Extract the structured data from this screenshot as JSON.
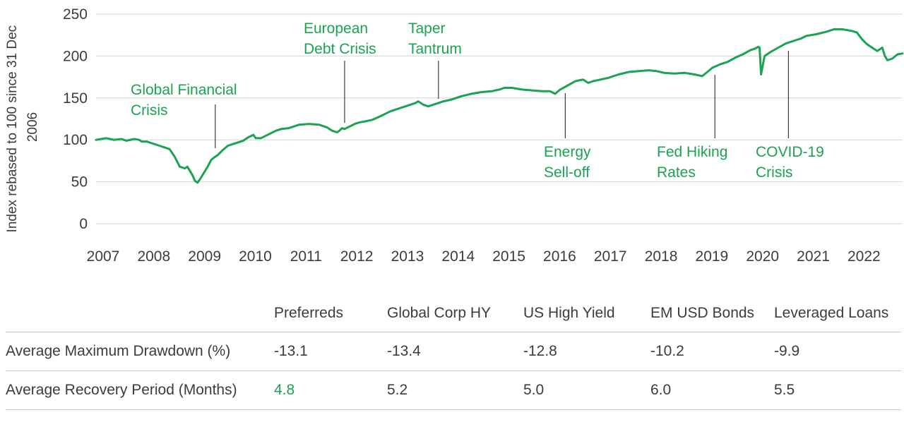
{
  "chart_data": {
    "type": "line",
    "ylabel": "Index rebased to 100 since 31 Dec 2006",
    "ylabel_lines": [
      "Index rebased to 100 since 31 Dec",
      "2006"
    ],
    "ylim": [
      0,
      250
    ],
    "yticks": [
      0,
      50,
      100,
      150,
      200,
      250
    ],
    "xlim": [
      2007.0,
      2022.9
    ],
    "xticks": [
      "2007",
      "2008",
      "2009",
      "2010",
      "2011",
      "2012",
      "2013",
      "2014",
      "2015",
      "2016",
      "2017",
      "2018",
      "2019",
      "2020",
      "2021",
      "2022"
    ],
    "grid": "horizontal",
    "line_color": "#1aa351",
    "series": [
      {
        "name": "",
        "x": [
          2007.0,
          2007.1,
          2007.2,
          2007.35,
          2007.5,
          2007.6,
          2007.75,
          2007.85,
          2007.9,
          2008.0,
          2008.1,
          2008.25,
          2008.35,
          2008.45,
          2008.55,
          2008.65,
          2008.75,
          2008.8,
          2008.85,
          2008.9,
          2008.95,
          2009.0,
          2009.05,
          2009.1,
          2009.2,
          2009.27,
          2009.33,
          2009.4,
          2009.5,
          2009.6,
          2009.7,
          2009.8,
          2009.9,
          2010.0,
          2010.1,
          2010.15,
          2010.25,
          2010.35,
          2010.45,
          2010.55,
          2010.65,
          2010.8,
          2010.9,
          2011.0,
          2011.2,
          2011.4,
          2011.55,
          2011.65,
          2011.75,
          2011.8,
          2011.85,
          2011.9,
          2012.0,
          2012.1,
          2012.2,
          2012.3,
          2012.45,
          2012.6,
          2012.8,
          2012.9,
          2013.0,
          2013.1,
          2013.2,
          2013.3,
          2013.35,
          2013.45,
          2013.55,
          2013.65,
          2013.75,
          2013.85,
          2014.0,
          2014.2,
          2014.4,
          2014.6,
          2014.8,
          2014.95,
          2015.05,
          2015.2,
          2015.4,
          2015.6,
          2015.8,
          2015.95,
          2016.05,
          2016.15,
          2016.3,
          2016.45,
          2016.6,
          2016.7,
          2016.8,
          2016.95,
          2017.1,
          2017.3,
          2017.5,
          2017.7,
          2017.9,
          2018.05,
          2018.2,
          2018.4,
          2018.6,
          2018.8,
          2018.95,
          2019.05,
          2019.15,
          2019.3,
          2019.45,
          2019.6,
          2019.75,
          2019.9,
          2020.0,
          2020.05,
          2020.08,
          2020.11,
          2020.18,
          2020.3,
          2020.45,
          2020.6,
          2020.75,
          2020.9,
          2021.0,
          2021.2,
          2021.4,
          2021.55,
          2021.7,
          2021.9,
          2022.0,
          2022.1,
          2022.2,
          2022.3,
          2022.4,
          2022.5,
          2022.55,
          2022.6,
          2022.7,
          2022.8,
          2022.9
        ],
        "y": [
          100,
          101,
          102,
          100,
          101,
          99,
          101,
          100,
          98,
          98,
          96,
          93,
          91,
          89,
          80,
          68,
          66,
          68,
          63,
          58,
          51,
          49,
          53,
          58,
          68,
          76,
          79,
          82,
          88,
          93,
          95,
          97,
          99,
          103,
          106,
          102,
          102,
          105,
          108,
          111,
          113,
          114,
          116,
          118,
          119,
          118,
          115,
          111,
          109,
          111,
          114,
          113,
          116,
          119,
          121,
          122,
          124,
          128,
          134,
          136,
          138,
          140,
          142,
          144,
          146,
          142,
          140,
          142,
          144,
          146,
          148,
          152,
          155,
          157,
          158,
          160,
          162,
          162,
          160,
          159,
          158,
          158,
          155,
          160,
          165,
          170,
          172,
          168,
          170,
          172,
          174,
          178,
          181,
          182,
          183,
          182,
          180,
          179,
          180,
          178,
          176,
          181,
          186,
          190,
          193,
          198,
          202,
          207,
          209,
          211,
          210,
          178,
          200,
          205,
          210,
          215,
          218,
          221,
          224,
          226,
          229,
          232,
          232,
          230,
          228,
          220,
          214,
          210,
          206,
          210,
          200,
          195,
          197,
          202,
          203
        ]
      }
    ],
    "annotations": [
      {
        "lines": [
          "Global Financial",
          "Crisis"
        ],
        "x": 2009.35,
        "y": 87
      },
      {
        "lines": [
          "European",
          "Debt Crisis"
        ],
        "x": 2011.9,
        "y": 120
      },
      {
        "lines": [
          "Taper",
          "Tantrum"
        ],
        "x": 2013.75,
        "y": 148
      },
      {
        "lines": [
          "Energy",
          "Sell-off"
        ],
        "x": 2016.25,
        "y": 160
      },
      {
        "lines": [
          "Fed Hiking",
          "Rates"
        ],
        "x": 2019.2,
        "y": 181
      },
      {
        "lines": [
          "COVID-19",
          "Crisis"
        ],
        "x": 2020.65,
        "y": 210
      }
    ]
  },
  "table": {
    "headers": [
      "",
      "Preferreds",
      "Global Corp HY",
      "US High Yield",
      "EM USD Bonds",
      "Leveraged Loans"
    ],
    "rows": [
      {
        "label": "Average Maximum Drawdown (%)",
        "values": [
          "-13.1",
          "-13.4",
          "-12.8",
          "-10.2",
          "-9.9"
        ]
      },
      {
        "label": "Average Recovery Period (Months)",
        "values": [
          "4.8",
          "5.2",
          "5.0",
          "6.0",
          "5.5"
        ]
      }
    ],
    "highlight_color": "#1aa351"
  }
}
